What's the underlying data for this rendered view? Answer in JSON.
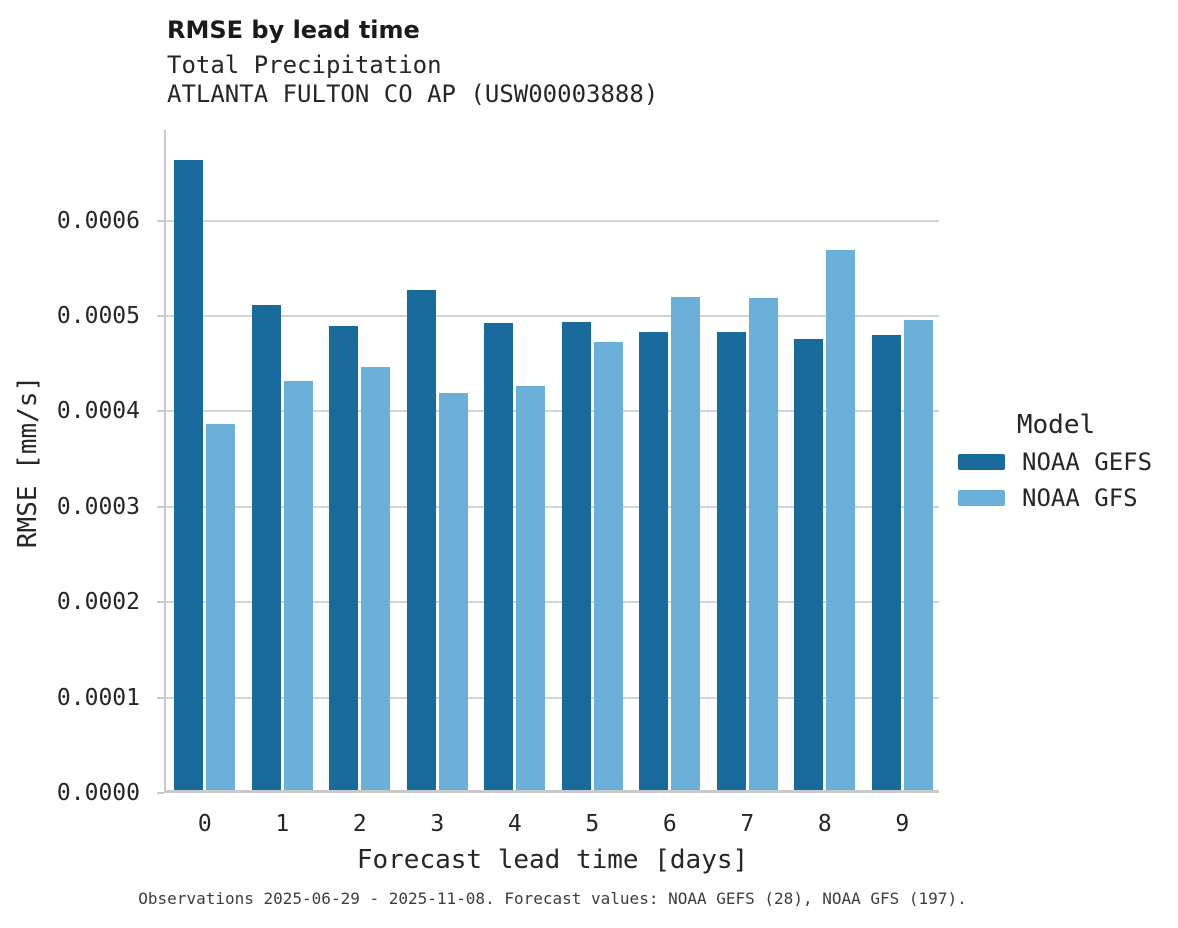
{
  "header": {
    "title": "RMSE by lead time",
    "subtitle_line1": "Total Precipitation",
    "subtitle_line2": "ATLANTA FULTON CO AP (USW00003888)"
  },
  "caption": {
    "text": "Observations 2025-06-29 - 2025-11-08. Forecast values: NOAA GEFS (28), NOAA GFS (197)."
  },
  "colors": {
    "gefs_dark_blue": "#186a9c",
    "gfs_light_blue": "#6bb0d8",
    "gridline_gray": "#d4d4d4",
    "spine_gray": "#c9c9c9",
    "text_dark": "#262626"
  },
  "chart_data": {
    "type": "bar",
    "title": "RMSE by lead time",
    "subtitle": [
      "Total Precipitation",
      "ATLANTA FULTON CO AP (USW00003888)"
    ],
    "xlabel": "Forecast lead time [days]",
    "ylabel": "RMSE [mm/s]",
    "categories": [
      "0",
      "1",
      "2",
      "3",
      "4",
      "5",
      "6",
      "7",
      "8",
      "9"
    ],
    "series": [
      {
        "name": "NOAA GEFS",
        "color": "#186a9c",
        "values": [
          0.00066,
          0.000508,
          0.000486,
          0.000524,
          0.00049,
          0.000491,
          0.00048,
          0.00048,
          0.000473,
          0.000477
        ]
      },
      {
        "name": "NOAA GFS",
        "color": "#6bb0d8",
        "values": [
          0.000384,
          0.000429,
          0.000443,
          0.000416,
          0.000423,
          0.00047,
          0.000517,
          0.000516,
          0.000566,
          0.000493
        ]
      }
    ],
    "ylim": [
      0,
      0.000695
    ],
    "yticks": [
      0.0,
      0.0001,
      0.0002,
      0.0003,
      0.0004,
      0.0005,
      0.0006
    ],
    "ytick_labels": [
      "0.0000",
      "0.0001",
      "0.0002",
      "0.0003",
      "0.0004",
      "0.0005",
      "0.0006"
    ],
    "grid": "horizontal",
    "legend_title": "Model",
    "legend_position": "right"
  }
}
